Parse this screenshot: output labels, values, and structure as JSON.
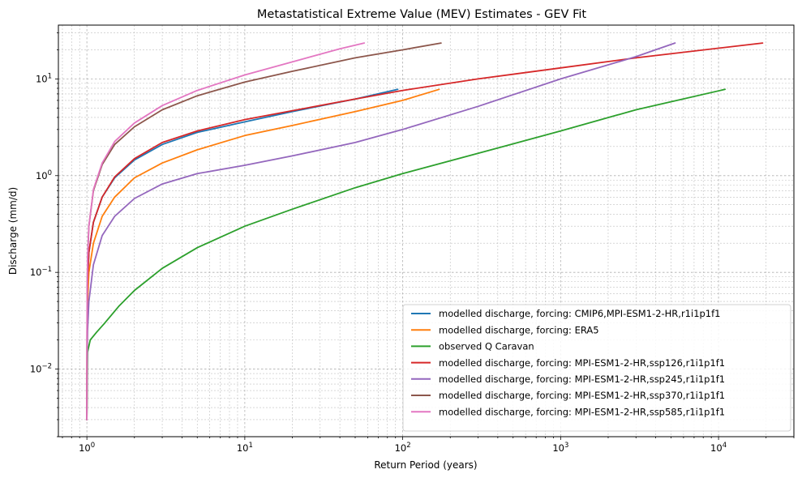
{
  "chart_data": {
    "type": "line",
    "title": "Metastatistical Extreme Value (MEV) Estimates - GEV Fit",
    "xlabel": "Return Period (years)",
    "ylabel": "Discharge (mm/d)",
    "xscale": "log",
    "yscale": "log",
    "xlim": [
      0.66,
      30000
    ],
    "ylim": [
      0.002,
      36
    ],
    "grid": true,
    "legend_loc": "lower right",
    "x_ticks": [
      {
        "value": 1,
        "base": "10",
        "exp": "0"
      },
      {
        "value": 10,
        "base": "10",
        "exp": "1"
      },
      {
        "value": 100,
        "base": "10",
        "exp": "2"
      },
      {
        "value": 1000,
        "base": "10",
        "exp": "3"
      },
      {
        "value": 10000,
        "base": "10",
        "exp": "4"
      }
    ],
    "y_ticks": [
      {
        "value": 0.01,
        "base": "10",
        "exp": "−2"
      },
      {
        "value": 0.1,
        "base": "10",
        "exp": "−1"
      },
      {
        "value": 1,
        "base": "10",
        "exp": "0"
      },
      {
        "value": 10,
        "base": "10",
        "exp": "1"
      }
    ],
    "series": [
      {
        "name": "modelled discharge, forcing: CMIP6,MPI-ESM1-2-HR,r1i1p1f1",
        "color": "#1f77b4",
        "x": [
          1.0,
          1.003,
          1.01,
          1.03,
          1.1,
          1.25,
          1.5,
          2,
          3,
          5,
          10,
          20,
          50,
          93
        ],
        "y": [
          0.003,
          0.03,
          0.08,
          0.16,
          0.33,
          0.6,
          0.95,
          1.45,
          2.1,
          2.8,
          3.6,
          4.6,
          6.2,
          7.8
        ]
      },
      {
        "name": "modelled discharge, forcing: ERA5",
        "color": "#ff7f0e",
        "x": [
          1.0,
          1.003,
          1.01,
          1.03,
          1.1,
          1.25,
          1.5,
          2,
          3,
          5,
          10,
          20,
          50,
          100,
          170
        ],
        "y": [
          0.003,
          0.02,
          0.05,
          0.1,
          0.2,
          0.38,
          0.6,
          0.95,
          1.35,
          1.85,
          2.6,
          3.3,
          4.6,
          6.0,
          7.8
        ]
      },
      {
        "name": "observed Q Caravan",
        "color": "#2ca02c",
        "x": [
          1.0,
          1.01,
          1.05,
          1.15,
          1.3,
          1.6,
          2,
          3,
          5,
          10,
          20,
          50,
          100,
          300,
          1000,
          3000,
          11000
        ],
        "y": [
          0.003,
          0.015,
          0.02,
          0.024,
          0.03,
          0.045,
          0.065,
          0.11,
          0.18,
          0.3,
          0.45,
          0.75,
          1.05,
          1.7,
          2.9,
          4.8,
          7.8
        ]
      },
      {
        "name": "modelled discharge, forcing: MPI-ESM1-2-HR,ssp126,r1i1p1f1",
        "color": "#d62728",
        "x": [
          1.0,
          1.003,
          1.01,
          1.03,
          1.1,
          1.25,
          1.5,
          2,
          3,
          5,
          10,
          20,
          50,
          100,
          300,
          1000,
          3000,
          19000
        ],
        "y": [
          0.003,
          0.03,
          0.08,
          0.16,
          0.33,
          0.6,
          0.97,
          1.5,
          2.2,
          2.9,
          3.8,
          4.7,
          6.2,
          7.6,
          10.0,
          13.0,
          16.5,
          23.5
        ]
      },
      {
        "name": "modelled discharge, forcing: MPI-ESM1-2-HR,ssp245,r1i1p1f1",
        "color": "#9467bd",
        "x": [
          1.0,
          1.003,
          1.01,
          1.03,
          1.1,
          1.25,
          1.5,
          2,
          3,
          5,
          10,
          20,
          50,
          100,
          300,
          1000,
          3000,
          5300
        ],
        "y": [
          0.003,
          0.01,
          0.025,
          0.05,
          0.12,
          0.24,
          0.38,
          0.58,
          0.82,
          1.05,
          1.28,
          1.6,
          2.2,
          3.0,
          5.2,
          10.0,
          17.0,
          23.5
        ]
      },
      {
        "name": "modelled discharge, forcing: MPI-ESM1-2-HR,ssp370,r1i1p1f1",
        "color": "#8c564b",
        "x": [
          1.0,
          1.003,
          1.01,
          1.03,
          1.1,
          1.25,
          1.5,
          2,
          3,
          5,
          10,
          20,
          50,
          100,
          175
        ],
        "y": [
          0.003,
          0.05,
          0.14,
          0.3,
          0.7,
          1.3,
          2.1,
          3.2,
          4.8,
          6.7,
          9.3,
          12.0,
          16.5,
          20.0,
          23.5
        ]
      },
      {
        "name": "modelled discharge, forcing: MPI-ESM1-2-HR,ssp585,r1i1p1f1",
        "color": "#e377c2",
        "x": [
          1.0,
          1.003,
          1.01,
          1.03,
          1.1,
          1.25,
          1.5,
          2,
          3,
          5,
          10,
          20,
          40,
          57
        ],
        "y": [
          0.003,
          0.05,
          0.14,
          0.3,
          0.72,
          1.35,
          2.25,
          3.5,
          5.3,
          7.6,
          11.0,
          15.0,
          20.5,
          23.5
        ]
      }
    ]
  }
}
